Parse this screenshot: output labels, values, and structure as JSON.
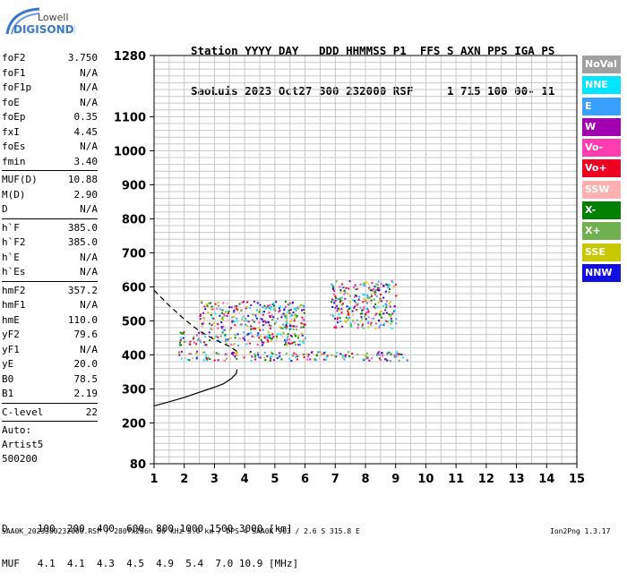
{
  "logo": {
    "line1": "Lowell",
    "line2": "DIGISONDE"
  },
  "header": {
    "line1": "Station YYYY DAY   DDD HHMMSS P1  FFS S AXN PPS IGA PS",
    "line2": "SaoLuis 2023 Oct27 300 232000 RSF     1 715 100 00- 11"
  },
  "params": {
    "group1": [
      {
        "label": "foF2",
        "value": "3.750"
      },
      {
        "label": "foF1",
        "value": "N/A"
      },
      {
        "label": "foF1p",
        "value": "N/A"
      },
      {
        "label": "foE",
        "value": "N/A"
      },
      {
        "label": "foEp",
        "value": "0.35"
      },
      {
        "label": "fxI",
        "value": "4.45"
      },
      {
        "label": "foEs",
        "value": "N/A"
      },
      {
        "label": "fmin",
        "value": "3.40"
      }
    ],
    "group2": [
      {
        "label": "MUF(D)",
        "value": "10.88"
      },
      {
        "label": "M(D)",
        "value": "2.90"
      },
      {
        "label": "D",
        "value": "N/A"
      }
    ],
    "group3": [
      {
        "label": "h`F",
        "value": "385.0"
      },
      {
        "label": "h`F2",
        "value": "385.0"
      },
      {
        "label": "h`E",
        "value": "N/A"
      },
      {
        "label": "h`Es",
        "value": "N/A"
      }
    ],
    "group4": [
      {
        "label": "hmF2",
        "value": "357.2"
      },
      {
        "label": "hmF1",
        "value": "N/A"
      },
      {
        "label": "hmE",
        "value": "110.0"
      },
      {
        "label": "yF2",
        "value": "79.6"
      },
      {
        "label": "yF1",
        "value": "N/A"
      },
      {
        "label": "yE",
        "value": "20.0"
      },
      {
        "label": "B0",
        "value": "78.5"
      },
      {
        "label": "B1",
        "value": "2.19"
      }
    ],
    "group5": [
      {
        "label": "C-level",
        "value": "22"
      }
    ],
    "auto": [
      "Auto:",
      "Artist5",
      "500200"
    ]
  },
  "legend": [
    {
      "label": "NoVal",
      "color": "#a0a0a0"
    },
    {
      "label": "NNE",
      "color": "#00e6ff"
    },
    {
      "label": "E",
      "color": "#3aa0ff"
    },
    {
      "label": "W",
      "color": "#a000b0"
    },
    {
      "label": "Vo-",
      "color": "#ff3cb0"
    },
    {
      "label": "Vo+",
      "color": "#ee0022"
    },
    {
      "label": "SSW",
      "color": "#ffb0b0"
    },
    {
      "label": "X-",
      "color": "#008000"
    },
    {
      "label": "X+",
      "color": "#70b050"
    },
    {
      "label": "SSE",
      "color": "#c8c800"
    },
    {
      "label": "NNW",
      "color": "#1010e0"
    }
  ],
  "chart_data": {
    "type": "scatter",
    "xlim": [
      1,
      15
    ],
    "ylim": [
      80,
      1280
    ],
    "x_ticks": [
      "1",
      "2",
      "3",
      "4",
      "5",
      "6",
      "7",
      "8",
      "9",
      "10",
      "11",
      "12",
      "13",
      "14",
      "15"
    ],
    "y_ticks": [
      "80",
      "200",
      "300",
      "400",
      "500",
      "600",
      "700",
      "800",
      "900",
      "1000",
      "1100",
      "1280"
    ],
    "grid": true,
    "layers": [
      {
        "name": "O",
        "xmin": 1.8,
        "xmax": 9.4,
        "hmin": 385,
        "hmax": 412
      },
      {
        "name": "X",
        "xmin": 1.8,
        "xmax": 6.0,
        "hmin": 430,
        "hmax": 470
      },
      {
        "name": "2F-low",
        "xmin": 2.5,
        "xmax": 6.0,
        "hmin": 475,
        "hmax": 560
      },
      {
        "name": "2F-high",
        "xmin": 6.8,
        "xmax": 9.0,
        "hmin": 480,
        "hmax": 620
      }
    ],
    "profile_solid": [
      [
        1.0,
        250
      ],
      [
        1.5,
        262
      ],
      [
        2.0,
        275
      ],
      [
        2.5,
        290
      ],
      [
        3.0,
        305
      ],
      [
        3.3,
        315
      ],
      [
        3.55,
        330
      ],
      [
        3.72,
        345
      ],
      [
        3.75,
        357
      ]
    ],
    "profile_dashed": [
      [
        1.0,
        590
      ],
      [
        1.5,
        545
      ],
      [
        2.0,
        505
      ],
      [
        2.5,
        470
      ],
      [
        3.0,
        445
      ],
      [
        3.5,
        425
      ],
      [
        3.75,
        410
      ]
    ]
  },
  "footer": {
    "d_row": "D     100  200  400  600  800 1000 1500 3000 [km]",
    "muf_row": "MUF   4.1  4.1  4.3  4.5  4.9  5.4  7.0 10.9 [MHz]",
    "file_line": "SAA0K_2023300232000.RSF / 280fx256h 50 kHz 5.0 km / DPS-4 SAA0K 903 / 2.6 S 315.8 E",
    "version": "Ion2Png 1.3.17"
  }
}
